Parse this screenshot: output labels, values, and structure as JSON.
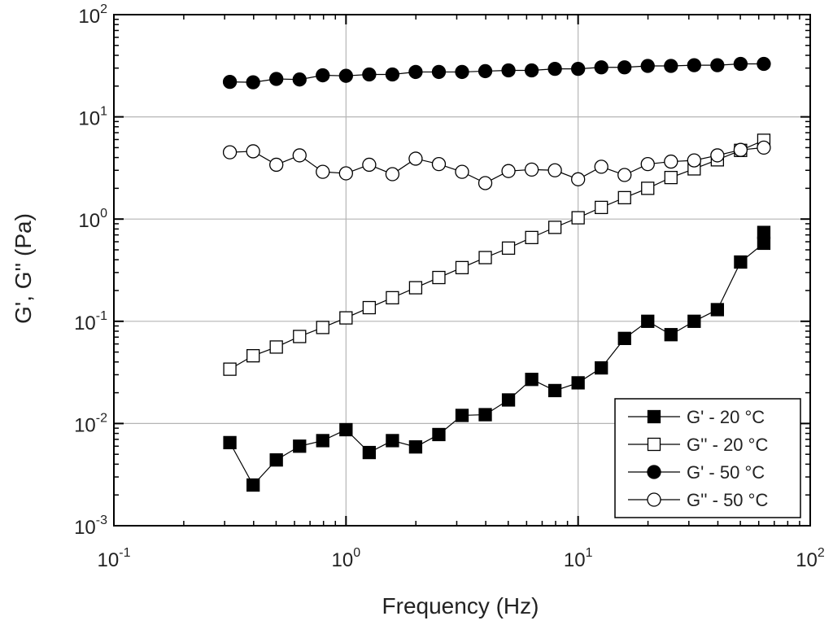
{
  "chart_data": {
    "type": "scatter",
    "scale": "log-log",
    "xlabel": "Frequency (Hz)",
    "ylabel": "G', G'' (Pa)",
    "xlim": [
      0.1,
      100
    ],
    "ylim": [
      0.001,
      100
    ],
    "x_ticks": [
      {
        "base": "10",
        "exp": "-1",
        "value": 0.1
      },
      {
        "base": "10",
        "exp": "0",
        "value": 1
      },
      {
        "base": "10",
        "exp": "1",
        "value": 10
      },
      {
        "base": "10",
        "exp": "2",
        "value": 100
      }
    ],
    "y_ticks": [
      {
        "base": "10",
        "exp": "-3",
        "value": 0.001
      },
      {
        "base": "10",
        "exp": "-2",
        "value": 0.01
      },
      {
        "base": "10",
        "exp": "-1",
        "value": 0.1
      },
      {
        "base": "10",
        "exp": "0",
        "value": 1
      },
      {
        "base": "10",
        "exp": "1",
        "value": 10
      },
      {
        "base": "10",
        "exp": "2",
        "value": 100
      }
    ],
    "grid": true,
    "legend_position": "bottom-right",
    "x": [
      0.316,
      0.398,
      0.501,
      0.631,
      0.794,
      1.0,
      1.259,
      1.585,
      1.995,
      2.512,
      3.162,
      3.981,
      5.012,
      6.31,
      7.943,
      10.0,
      12.59,
      15.85,
      19.95,
      25.12,
      31.62,
      39.81,
      50.12,
      63.1
    ],
    "series": [
      {
        "name": "G' - 20 °C",
        "marker": "square",
        "filled": true,
        "values": [
          0.0065,
          0.0025,
          0.0044,
          0.006,
          0.0068,
          0.0087,
          0.0052,
          0.0068,
          0.0059,
          0.0078,
          0.012,
          0.0122,
          0.017,
          0.027,
          0.021,
          0.025,
          0.035,
          0.068,
          0.1,
          0.074,
          0.1,
          0.13,
          0.38,
          0.58
        ],
        "extra_points": [
          [
            63.1,
            0.74
          ]
        ]
      },
      {
        "name": "G'' - 20 °C",
        "marker": "square",
        "filled": false,
        "values": [
          0.034,
          0.046,
          0.056,
          0.071,
          0.087,
          0.108,
          0.136,
          0.17,
          0.213,
          0.268,
          0.335,
          0.42,
          0.52,
          0.66,
          0.83,
          1.03,
          1.3,
          1.62,
          2.0,
          2.55,
          3.1,
          3.8,
          4.7,
          5.9
        ],
        "extra_points": []
      },
      {
        "name": "G' - 50 °C",
        "marker": "circle",
        "filled": true,
        "values": [
          22,
          21.8,
          23.5,
          23.2,
          25.5,
          25.2,
          26,
          26,
          27.5,
          27.5,
          27.5,
          28,
          28.5,
          28.5,
          29.5,
          29.5,
          30.5,
          30.5,
          31.5,
          31.5,
          32,
          32,
          33,
          33
        ],
        "extra_points": []
      },
      {
        "name": "G'' - 50 °C",
        "marker": "circle",
        "filled": false,
        "values": [
          4.5,
          4.6,
          3.4,
          4.2,
          2.9,
          2.8,
          3.4,
          2.75,
          3.9,
          3.45,
          2.9,
          2.25,
          2.95,
          3.05,
          3.0,
          2.45,
          3.25,
          2.7,
          3.45,
          3.65,
          3.75,
          4.2,
          4.75,
          5.0
        ],
        "extra_points": []
      }
    ]
  }
}
